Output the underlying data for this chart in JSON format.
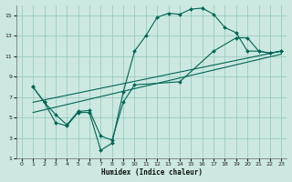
{
  "xlabel": "Humidex (Indice chaleur)",
  "bg_color": "#cce8e0",
  "grid_color": "#99ccc0",
  "line_color": "#006655",
  "xlim": [
    -0.5,
    23.5
  ],
  "ylim": [
    1,
    16
  ],
  "xticks": [
    0,
    1,
    2,
    3,
    4,
    5,
    6,
    7,
    8,
    9,
    10,
    11,
    12,
    13,
    14,
    15,
    16,
    17,
    18,
    19,
    20,
    21,
    22,
    23
  ],
  "yticks": [
    1,
    3,
    5,
    7,
    9,
    11,
    13,
    15
  ],
  "curve1_x": [
    1,
    2,
    3,
    4,
    5,
    6,
    7,
    8,
    9,
    10,
    11,
    12,
    13,
    14,
    15,
    16,
    17,
    18,
    19,
    20,
    21,
    22,
    23
  ],
  "curve1_y": [
    8.0,
    6.5,
    4.5,
    4.2,
    5.5,
    5.5,
    1.8,
    2.5,
    7.5,
    11.5,
    13.0,
    14.8,
    15.2,
    15.1,
    15.6,
    15.7,
    15.1,
    13.8,
    13.3,
    11.5,
    11.5,
    11.3,
    11.5
  ],
  "curve2_x": [
    1,
    2,
    3,
    4,
    5,
    6,
    7,
    8,
    9,
    10,
    14,
    17,
    19,
    20,
    21,
    22,
    23
  ],
  "curve2_y": [
    8.0,
    6.5,
    5.3,
    4.3,
    5.6,
    5.7,
    3.2,
    2.8,
    6.5,
    8.2,
    8.5,
    11.5,
    12.8,
    12.8,
    11.5,
    11.3,
    11.5
  ],
  "curve3_x": [
    1,
    23
  ],
  "curve3_y": [
    6.5,
    11.5
  ],
  "curve4_x": [
    1,
    23
  ],
  "curve4_y": [
    5.5,
    11.2
  ]
}
